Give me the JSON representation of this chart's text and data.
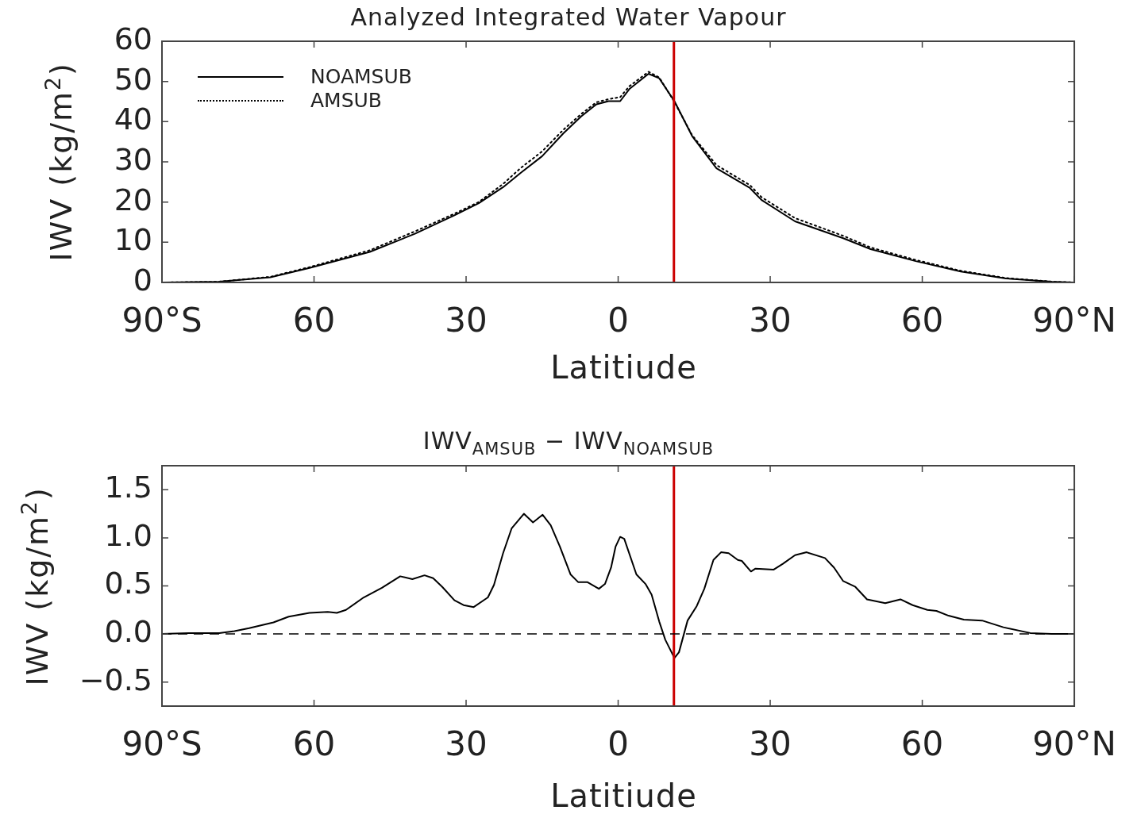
{
  "chart_data": [
    {
      "type": "line",
      "title": "Analyzed Integrated Water Vapour",
      "xlabel": "Latitiude",
      "ylabel": "IWV (kg/m$^{2}$)",
      "xlim": [
        -90,
        90
      ],
      "xticks": [
        {
          "value": -90,
          "label": "90°S"
        },
        {
          "value": -60,
          "label": "60"
        },
        {
          "value": -30,
          "label": "30"
        },
        {
          "value": 0,
          "label": "0"
        },
        {
          "value": 30,
          "label": "30"
        },
        {
          "value": 60,
          "label": "60"
        },
        {
          "value": 90,
          "label": "90°N"
        }
      ],
      "ylim": [
        0,
        60
      ],
      "yticks": [
        0,
        10,
        20,
        30,
        40,
        50,
        60
      ],
      "grid": false,
      "legend": "top left",
      "marker": "none",
      "x": [
        -90,
        -78.7,
        -68.6,
        -60.9,
        -49,
        -40.1,
        -32.3,
        -27.5,
        -22.7,
        -19.2,
        -15,
        -10.8,
        -7.3,
        -4.3,
        -1.9,
        0.4,
        2.2,
        6,
        8.1,
        11.1,
        14.6,
        19.4,
        26,
        28.3,
        34.9,
        44.4,
        49.8,
        58.7,
        67.6,
        76.5,
        85.5,
        90
      ],
      "series": [
        {
          "name": "NOAMSUB",
          "color": "#000000",
          "line_style": "solid",
          "values": [
            0,
            0.2,
            1.3,
            3.6,
            7.6,
            12.1,
            16.7,
            19.7,
            23.7,
            27.3,
            31.4,
            37.1,
            41.3,
            44.3,
            45.1,
            45.1,
            48.1,
            51.9,
            50.8,
            45.1,
            36.4,
            28.4,
            23.5,
            20.5,
            15.2,
            11,
            8.3,
            5.3,
            2.7,
            1,
            0.2,
            0
          ]
        },
        {
          "name": "AMSUB",
          "color": "#000000",
          "line_style": "dotted",
          "values": [
            0,
            0.2,
            1.4,
            3.8,
            8,
            12.7,
            17.1,
            20,
            24.5,
            28.5,
            32.6,
            38,
            41.9,
            44.8,
            45.6,
            46.1,
            48.8,
            52.4,
            51,
            44.9,
            36.6,
            29.2,
            24.2,
            21.2,
            16,
            11.6,
            8.7,
            5.6,
            2.9,
            1.1,
            0.2,
            0
          ]
        }
      ],
      "ref_lines": [
        {
          "axis": "x",
          "value": 11,
          "color": "#cc0000",
          "line_style": "solid"
        }
      ]
    },
    {
      "type": "line",
      "title": "IWV$_{AMSUB}$ − IWV$_{NOAMSUB}$",
      "xlabel": "Latitiude",
      "ylabel": "IWV (kg/m$^{2}$)",
      "xlim": [
        -90,
        90
      ],
      "xticks": [
        {
          "value": -90,
          "label": "90°S"
        },
        {
          "value": -60,
          "label": "60"
        },
        {
          "value": -30,
          "label": "30"
        },
        {
          "value": 0,
          "label": "0"
        },
        {
          "value": 30,
          "label": "30"
        },
        {
          "value": 60,
          "label": "60"
        },
        {
          "value": 90,
          "label": "90°N"
        }
      ],
      "ylim": [
        -0.75,
        1.75
      ],
      "yticks": [
        {
          "value": -0.5,
          "label": "−0.5"
        },
        {
          "value": 0,
          "label": "0.0"
        },
        {
          "value": 0.5,
          "label": "0.5"
        },
        {
          "value": 1,
          "label": "1.0"
        },
        {
          "value": 1.5,
          "label": "1.5"
        }
      ],
      "grid": false,
      "marker": "none",
      "x": [
        -90,
        -84.7,
        -78.7,
        -75.7,
        -72.8,
        -68,
        -65,
        -60.9,
        -57.3,
        -55.5,
        -53.7,
        -50.2,
        -46.6,
        -43,
        -40.6,
        -38.2,
        -36.5,
        -34.7,
        -32.3,
        -30.5,
        -28.5,
        -25.7,
        -24.5,
        -22.7,
        -21,
        -18.6,
        -16.8,
        -14.9,
        -13.3,
        -11.5,
        -9.4,
        -7.9,
        -6.1,
        -3.8,
        -2.6,
        -1.4,
        -0.5,
        0.4,
        1.2,
        3.6,
        5.4,
        6.6,
        8.1,
        9.3,
        11.1,
        12,
        13.7,
        15.5,
        17,
        18.8,
        20.3,
        21.8,
        23.6,
        24.4,
        26.2,
        27.1,
        30.7,
        32.5,
        34.9,
        37.2,
        40.8,
        42.6,
        44.4,
        46.8,
        49.1,
        52.7,
        55.7,
        58.1,
        61,
        62.8,
        65.2,
        68.2,
        71.8,
        76,
        81.3,
        85.5,
        90
      ],
      "series": [
        {
          "color": "#000000",
          "values": [
            0,
            0.01,
            0.01,
            0.03,
            0.06,
            0.12,
            0.18,
            0.22,
            0.23,
            0.22,
            0.25,
            0.38,
            0.48,
            0.6,
            0.57,
            0.61,
            0.58,
            0.49,
            0.35,
            0.3,
            0.28,
            0.38,
            0.51,
            0.84,
            1.1,
            1.25,
            1.16,
            1.24,
            1.13,
            0.91,
            0.62,
            0.54,
            0.54,
            0.47,
            0.52,
            0.69,
            0.91,
            1.01,
            0.99,
            0.62,
            0.52,
            0.41,
            0.13,
            -0.06,
            -0.25,
            -0.19,
            0.14,
            0.29,
            0.47,
            0.77,
            0.85,
            0.84,
            0.77,
            0.76,
            0.65,
            0.68,
            0.67,
            0.73,
            0.82,
            0.85,
            0.79,
            0.69,
            0.55,
            0.49,
            0.36,
            0.32,
            0.36,
            0.3,
            0.25,
            0.24,
            0.19,
            0.15,
            0.14,
            0.07,
            0.01,
            0,
            0
          ]
        }
      ],
      "ref_lines": [
        {
          "axis": "x",
          "value": 11,
          "color": "#cc0000",
          "line_style": "solid"
        },
        {
          "axis": "y",
          "value": 0,
          "color": "#000000",
          "line_style": "dashed"
        }
      ]
    }
  ]
}
